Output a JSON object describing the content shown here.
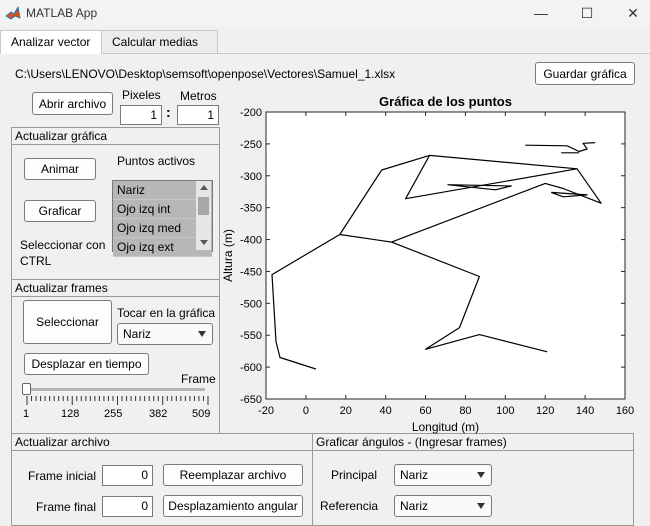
{
  "window": {
    "title": "MATLAB App",
    "minimize_glyph": "—",
    "maximize_glyph": "☐",
    "close_glyph": "✕"
  },
  "tabs": [
    {
      "label": "Analizar vector",
      "active": true
    },
    {
      "label": "Calcular medias",
      "active": false
    }
  ],
  "file_path": "C:\\Users\\LENOVO\\Desktop\\semsoft\\openpose\\Vectores\\Samuel_1.xlsx",
  "buttons": {
    "guardar": "Guardar gráfica",
    "abrir": "Abrir archivo",
    "animar": "Animar",
    "graficar": "Graficar",
    "seleccionar": "Seleccionar",
    "desplazar": "Desplazar en tiempo",
    "reemplazar": "Reemplazar archivo",
    "desplazamiento": "Desplazamiento angular"
  },
  "scale": {
    "pixeles_label": "Pixeles",
    "metros_label": "Metros",
    "pixeles_value": "1",
    "metros_value": "1",
    "separator": ":"
  },
  "actualizar_grafica": {
    "title": "Actualizar gráfica",
    "puntos_label": "Puntos activos",
    "puntos": [
      "Nariz",
      "Ojo izq int",
      "Ojo izq med",
      "Ojo izq ext"
    ],
    "hint": "Seleccionar con CTRL"
  },
  "actualizar_frames": {
    "title": "Actualizar frames",
    "tocar_label": "Tocar en la gráfica",
    "tocar_value": "Nariz",
    "frame_label": "Frame",
    "slider_value": 1,
    "slider_ticks": [
      "1",
      "128",
      "255",
      "382",
      "509"
    ]
  },
  "actualizar_archivo": {
    "title": "Actualizar archivo",
    "frame_inicial_label": "Frame inicial",
    "frame_inicial_value": "0",
    "frame_final_label": "Frame final",
    "frame_final_value": "0"
  },
  "graficar_angulos": {
    "title": "Graficar ángulos - (Ingresar frames)",
    "principal_label": "Principal",
    "principal_value": "Nariz",
    "referencia_label": "Referencia",
    "referencia_value": "Nariz"
  },
  "colors": {
    "plot_line": "#000000",
    "listbox_bg": "#c8c8c8"
  },
  "chart_data": {
    "type": "line",
    "title": "Gráfica de los puntos",
    "xlabel": "Longitud (m)",
    "ylabel": "Altura (m)",
    "xlim": [
      -20,
      160
    ],
    "ylim": [
      -650,
      -200
    ],
    "xticks": [
      "-20",
      "0",
      "20",
      "40",
      "60",
      "80",
      "100",
      "120",
      "140",
      "160"
    ],
    "yticks": [
      "-200",
      "-250",
      "-300",
      "-350",
      "-400",
      "-450",
      "-500",
      "-550",
      "-600",
      "-650"
    ],
    "grid": false,
    "series": [
      {
        "points": [
          [
            5,
            -603
          ],
          [
            -13,
            -585
          ],
          [
            -15,
            -560
          ],
          [
            -17,
            -455
          ],
          [
            17,
            -392
          ],
          [
            43,
            -404
          ],
          [
            87,
            -458
          ],
          [
            77,
            -538
          ],
          [
            60,
            -572
          ],
          [
            87,
            -549
          ],
          [
            121,
            -576
          ]
        ]
      },
      {
        "points": [
          [
            17,
            -392
          ],
          [
            38,
            -291
          ],
          [
            62,
            -268
          ],
          [
            136,
            -289
          ],
          [
            148,
            -343
          ],
          [
            129,
            -320
          ],
          [
            120,
            -312
          ],
          [
            43,
            -404
          ]
        ]
      },
      {
        "points": [
          [
            62,
            -268
          ],
          [
            50,
            -336
          ],
          [
            136,
            -289
          ]
        ]
      },
      {
        "points": [
          [
            71,
            -314
          ],
          [
            103,
            -316
          ],
          [
            95,
            -322
          ],
          [
            71,
            -314
          ]
        ]
      },
      {
        "points": [
          [
            123,
            -326
          ],
          [
            141,
            -330
          ],
          [
            129,
            -333
          ],
          [
            123,
            -326
          ]
        ]
      },
      {
        "points": [
          [
            110,
            -252
          ],
          [
            131,
            -253
          ],
          [
            137,
            -262
          ],
          [
            141,
            -258
          ],
          [
            139,
            -249
          ],
          [
            145,
            -248
          ]
        ]
      },
      {
        "points": [
          [
            128,
            -264
          ],
          [
            137,
            -264
          ]
        ]
      }
    ]
  }
}
